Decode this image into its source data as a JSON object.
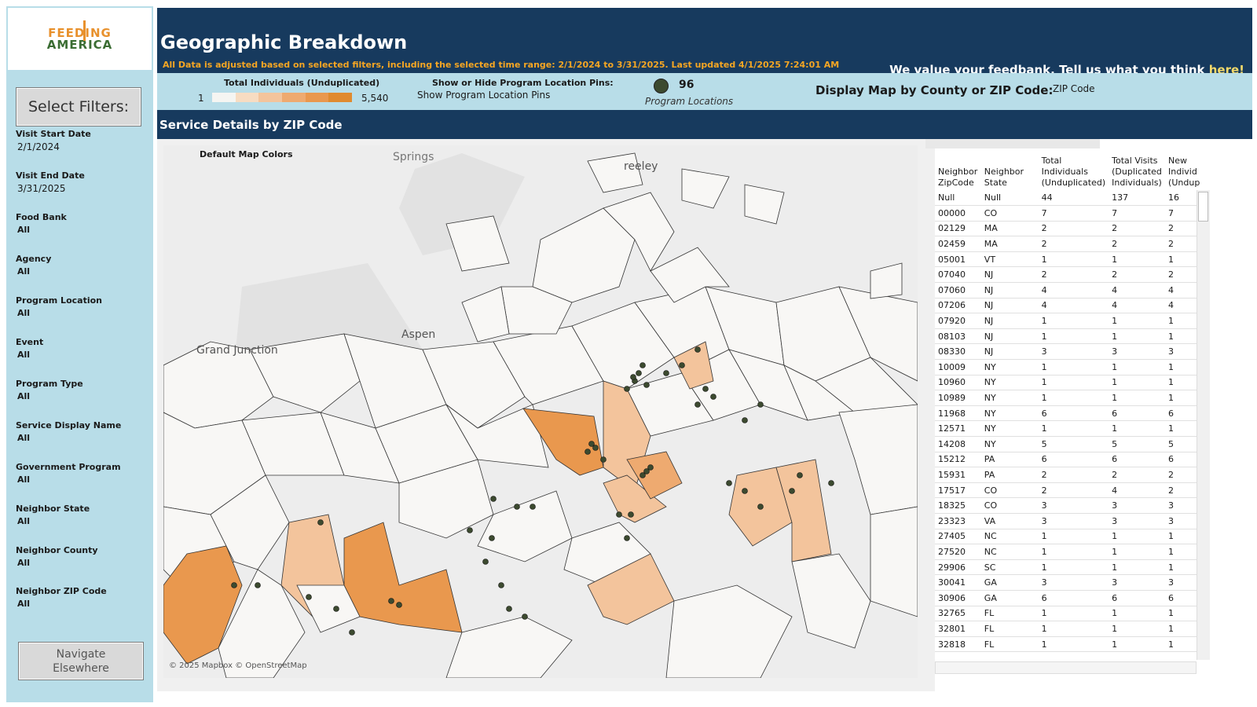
{
  "logo": {
    "line1": "FEEDING",
    "line2": "AMERICA"
  },
  "sidebar": {
    "select_filters": "Select Filters:",
    "filters": [
      {
        "label": "Visit Start Date",
        "value": "2/1/2024",
        "bold": false
      },
      {
        "label": "Visit End Date",
        "value": "3/31/2025",
        "bold": false
      },
      {
        "label": "Food Bank",
        "value": "All",
        "bold": true
      },
      {
        "label": "Agency",
        "value": "All",
        "bold": true
      },
      {
        "label": "Program Location",
        "value": "All",
        "bold": true
      },
      {
        "label": "Event",
        "value": "All",
        "bold": true
      },
      {
        "label": "Program Type",
        "value": "All",
        "bold": true
      },
      {
        "label": "Service Display Name",
        "value": "All",
        "bold": true
      },
      {
        "label": "Government Program",
        "value": "All",
        "bold": true
      },
      {
        "label": "Neighbor State",
        "value": "All",
        "bold": true
      },
      {
        "label": "Neighbor County",
        "value": "All",
        "bold": true
      },
      {
        "label": "Neighbor ZIP Code",
        "value": "All",
        "bold": true
      }
    ],
    "navigate_line1": "Navigate",
    "navigate_line2": "Elsewhere"
  },
  "header": {
    "title": "Geographic Breakdown",
    "subtitle": "All Data is adjusted based on selected filters, including the selected time range: 2/1/2024 to 3/31/2025. Last updated 4/1/2025 7:24:01 AM",
    "feedback_text": "We value your feedbank. Tell us what you think ",
    "feedback_link": "here!"
  },
  "legend": {
    "title": "Total Individuals (Unduplicated)",
    "min": "1",
    "max": "5,540",
    "ramp_colors": [
      "#f5f5f2",
      "#f7dcc2",
      "#f3c49c",
      "#eeaa70",
      "#e9984e",
      "#e08a2f"
    ],
    "pins_title": "Show or Hide Program Location Pins:",
    "pins_value": "Show Program Location Pins",
    "pin_count": "96",
    "pin_label": "Program Locations",
    "display_label": "Display Map by County or ZIP Code:",
    "display_value": "ZIP Code"
  },
  "section": {
    "title": "Service Details by ZIP Code"
  },
  "map": {
    "overlay_label": "Default Map Colors",
    "place_labels": [
      "Grand Junction",
      "Aspen",
      "Springs",
      "reeley"
    ],
    "copyright": "© 2025 Mapbox © OpenStreetMap"
  },
  "table": {
    "headers": [
      "Neighbor ZipCode",
      "Neighbor State",
      "Total Individuals (Unduplicated)",
      "Total Visits (Duplicated Individuals)",
      "New Individ (Undup"
    ],
    "rows": [
      [
        "Null",
        "Null",
        "44",
        "137",
        "16"
      ],
      [
        "00000",
        "CO",
        "7",
        "7",
        "7"
      ],
      [
        "02129",
        "MA",
        "2",
        "2",
        "2"
      ],
      [
        "02459",
        "MA",
        "2",
        "2",
        "2"
      ],
      [
        "05001",
        "VT",
        "1",
        "1",
        "1"
      ],
      [
        "07040",
        "NJ",
        "2",
        "2",
        "2"
      ],
      [
        "07060",
        "NJ",
        "4",
        "4",
        "4"
      ],
      [
        "07206",
        "NJ",
        "4",
        "4",
        "4"
      ],
      [
        "07920",
        "NJ",
        "1",
        "1",
        "1"
      ],
      [
        "08103",
        "NJ",
        "1",
        "1",
        "1"
      ],
      [
        "08330",
        "NJ",
        "3",
        "3",
        "3"
      ],
      [
        "10009",
        "NY",
        "1",
        "1",
        "1"
      ],
      [
        "10960",
        "NY",
        "1",
        "1",
        "1"
      ],
      [
        "10989",
        "NY",
        "1",
        "1",
        "1"
      ],
      [
        "11968",
        "NY",
        "6",
        "6",
        "6"
      ],
      [
        "12571",
        "NY",
        "1",
        "1",
        "1"
      ],
      [
        "14208",
        "NY",
        "5",
        "5",
        "5"
      ],
      [
        "15212",
        "PA",
        "6",
        "6",
        "6"
      ],
      [
        "15931",
        "PA",
        "2",
        "2",
        "2"
      ],
      [
        "17517",
        "CO",
        "2",
        "4",
        "2"
      ],
      [
        "18325",
        "CO",
        "3",
        "3",
        "3"
      ],
      [
        "23323",
        "VA",
        "3",
        "3",
        "3"
      ],
      [
        "27405",
        "NC",
        "1",
        "1",
        "1"
      ],
      [
        "27520",
        "NC",
        "1",
        "1",
        "1"
      ],
      [
        "29906",
        "SC",
        "1",
        "1",
        "1"
      ],
      [
        "30041",
        "GA",
        "3",
        "3",
        "3"
      ],
      [
        "30906",
        "GA",
        "6",
        "6",
        "6"
      ],
      [
        "32765",
        "FL",
        "1",
        "1",
        "1"
      ],
      [
        "32801",
        "FL",
        "1",
        "1",
        "1"
      ],
      [
        "32818",
        "FL",
        "1",
        "1",
        "1"
      ]
    ]
  }
}
